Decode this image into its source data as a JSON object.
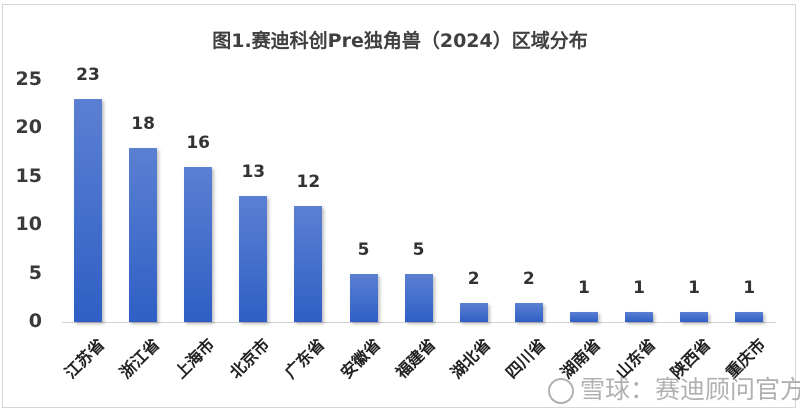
{
  "chart_data": {
    "type": "bar",
    "title": "图1.赛迪科创Pre独角兽（2024）区域分布",
    "xlabel": "",
    "ylabel": "",
    "ylim": [
      0,
      25
    ],
    "yticks": [
      "0",
      "5",
      "10",
      "15",
      "20",
      "25"
    ],
    "grid": false,
    "legend": null,
    "categories": [
      "江苏省",
      "浙江省",
      "上海市",
      "北京市",
      "广东省",
      "安徽省",
      "福建省",
      "湖北省",
      "四川省",
      "湖南省",
      "山东省",
      "陕西省",
      "重庆市"
    ],
    "values": [
      23,
      18,
      16,
      13,
      12,
      5,
      5,
      2,
      2,
      1,
      1,
      1,
      1
    ],
    "value_labels": [
      "23",
      "18",
      "16",
      "13",
      "12",
      "5",
      "5",
      "2",
      "2",
      "1",
      "1",
      "1",
      "1"
    ],
    "bar_color": "#3a66c9"
  },
  "watermark": "雪球：赛迪顾问官方"
}
